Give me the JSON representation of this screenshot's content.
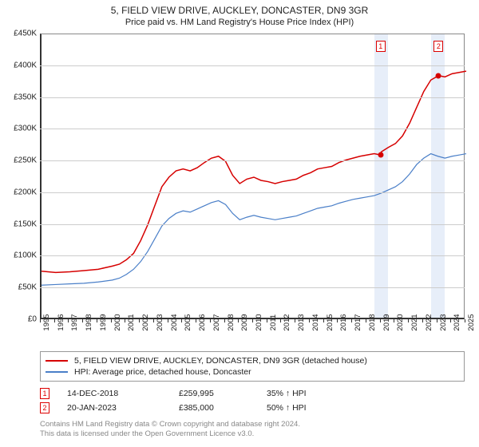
{
  "title": "5, FIELD VIEW DRIVE, AUCKLEY, DONCASTER, DN9 3GR",
  "subtitle": "Price paid vs. HM Land Registry's House Price Index (HPI)",
  "chart": {
    "type": "line",
    "background_color": "#ffffff",
    "grid_color": "#cccccc",
    "axis_color": "#333333",
    "y": {
      "min": 0,
      "max": 450000,
      "step": 50000,
      "prefix": "£",
      "suffix": "K",
      "divisor": 1000,
      "label_fontsize": 10
    },
    "x": {
      "min": 1995,
      "max": 2025,
      "step": 1,
      "label_fontsize": 9.5,
      "rotation": -90
    },
    "shading": [
      {
        "from": 2018.5,
        "to": 2019.5,
        "color": "rgba(120,160,220,0.18)"
      },
      {
        "from": 2022.5,
        "to": 2023.5,
        "color": "rgba(120,160,220,0.18)"
      }
    ],
    "series": [
      {
        "name": "subject",
        "label": "5, FIELD VIEW DRIVE, AUCKLEY, DONCASTER, DN9 3GR (detached house)",
        "color": "#d60000",
        "line_width": 1.5,
        "data": [
          [
            1995,
            77000
          ],
          [
            1996,
            75000
          ],
          [
            1997,
            76000
          ],
          [
            1998,
            78000
          ],
          [
            1999,
            80000
          ],
          [
            2000,
            85000
          ],
          [
            2000.5,
            88000
          ],
          [
            2001,
            95000
          ],
          [
            2001.5,
            105000
          ],
          [
            2002,
            125000
          ],
          [
            2002.5,
            150000
          ],
          [
            2003,
            180000
          ],
          [
            2003.5,
            210000
          ],
          [
            2004,
            225000
          ],
          [
            2004.5,
            235000
          ],
          [
            2005,
            238000
          ],
          [
            2005.5,
            235000
          ],
          [
            2006,
            240000
          ],
          [
            2006.5,
            248000
          ],
          [
            2007,
            255000
          ],
          [
            2007.5,
            258000
          ],
          [
            2008,
            250000
          ],
          [
            2008.5,
            228000
          ],
          [
            2009,
            215000
          ],
          [
            2009.5,
            222000
          ],
          [
            2010,
            225000
          ],
          [
            2010.5,
            220000
          ],
          [
            2011,
            218000
          ],
          [
            2011.5,
            215000
          ],
          [
            2012,
            218000
          ],
          [
            2012.5,
            220000
          ],
          [
            2013,
            222000
          ],
          [
            2013.5,
            228000
          ],
          [
            2014,
            232000
          ],
          [
            2014.5,
            238000
          ],
          [
            2015,
            240000
          ],
          [
            2015.5,
            242000
          ],
          [
            2016,
            248000
          ],
          [
            2016.5,
            252000
          ],
          [
            2017,
            255000
          ],
          [
            2017.5,
            258000
          ],
          [
            2018,
            260000
          ],
          [
            2018.5,
            262000
          ],
          [
            2018.95,
            259995
          ],
          [
            2019,
            265000
          ],
          [
            2019.5,
            272000
          ],
          [
            2020,
            278000
          ],
          [
            2020.5,
            290000
          ],
          [
            2021,
            310000
          ],
          [
            2021.5,
            335000
          ],
          [
            2022,
            360000
          ],
          [
            2022.5,
            378000
          ],
          [
            2023.05,
            385000
          ],
          [
            2023.5,
            383000
          ],
          [
            2024,
            388000
          ],
          [
            2024.5,
            390000
          ],
          [
            2025,
            392000
          ]
        ]
      },
      {
        "name": "hpi",
        "label": "HPI: Average price, detached house, Doncaster",
        "color": "#4a7fc8",
        "line_width": 1.2,
        "data": [
          [
            1995,
            55000
          ],
          [
            1996,
            56000
          ],
          [
            1997,
            57000
          ],
          [
            1998,
            58000
          ],
          [
            1999,
            60000
          ],
          [
            2000,
            63000
          ],
          [
            2000.5,
            66000
          ],
          [
            2001,
            72000
          ],
          [
            2001.5,
            80000
          ],
          [
            2002,
            92000
          ],
          [
            2002.5,
            108000
          ],
          [
            2003,
            128000
          ],
          [
            2003.5,
            148000
          ],
          [
            2004,
            160000
          ],
          [
            2004.5,
            168000
          ],
          [
            2005,
            172000
          ],
          [
            2005.5,
            170000
          ],
          [
            2006,
            175000
          ],
          [
            2006.5,
            180000
          ],
          [
            2007,
            185000
          ],
          [
            2007.5,
            188000
          ],
          [
            2008,
            182000
          ],
          [
            2008.5,
            168000
          ],
          [
            2009,
            158000
          ],
          [
            2009.5,
            162000
          ],
          [
            2010,
            165000
          ],
          [
            2010.5,
            162000
          ],
          [
            2011,
            160000
          ],
          [
            2011.5,
            158000
          ],
          [
            2012,
            160000
          ],
          [
            2012.5,
            162000
          ],
          [
            2013,
            164000
          ],
          [
            2013.5,
            168000
          ],
          [
            2014,
            172000
          ],
          [
            2014.5,
            176000
          ],
          [
            2015,
            178000
          ],
          [
            2015.5,
            180000
          ],
          [
            2016,
            184000
          ],
          [
            2016.5,
            187000
          ],
          [
            2017,
            190000
          ],
          [
            2017.5,
            192000
          ],
          [
            2018,
            194000
          ],
          [
            2018.5,
            196000
          ],
          [
            2019,
            200000
          ],
          [
            2019.5,
            205000
          ],
          [
            2020,
            210000
          ],
          [
            2020.5,
            218000
          ],
          [
            2021,
            230000
          ],
          [
            2021.5,
            245000
          ],
          [
            2022,
            255000
          ],
          [
            2022.5,
            262000
          ],
          [
            2023,
            258000
          ],
          [
            2023.5,
            255000
          ],
          [
            2024,
            258000
          ],
          [
            2024.5,
            260000
          ],
          [
            2025,
            262000
          ]
        ]
      }
    ],
    "sale_markers": [
      {
        "idx": "1",
        "x": 2018.95,
        "y": 259995,
        "color": "#d60000"
      },
      {
        "idx": "2",
        "x": 2023.05,
        "y": 385000,
        "color": "#d60000"
      }
    ],
    "marker_box_top_offset": 8
  },
  "legend": {
    "series_labels": [
      "5, FIELD VIEW DRIVE, AUCKLEY, DONCASTER, DN9 3GR (detached house)",
      "HPI: Average price, detached house, Doncaster"
    ]
  },
  "sales_table": {
    "rows": [
      {
        "idx": "1",
        "date": "14-DEC-2018",
        "price": "£259,995",
        "vs": "35% ↑ HPI"
      },
      {
        "idx": "2",
        "date": "20-JAN-2023",
        "price": "£385,000",
        "vs": "50% ↑ HPI"
      }
    ]
  },
  "attribution": {
    "line1": "Contains HM Land Registry data © Crown copyright and database right 2024.",
    "line2": "This data is licensed under the Open Government Licence v3.0."
  }
}
